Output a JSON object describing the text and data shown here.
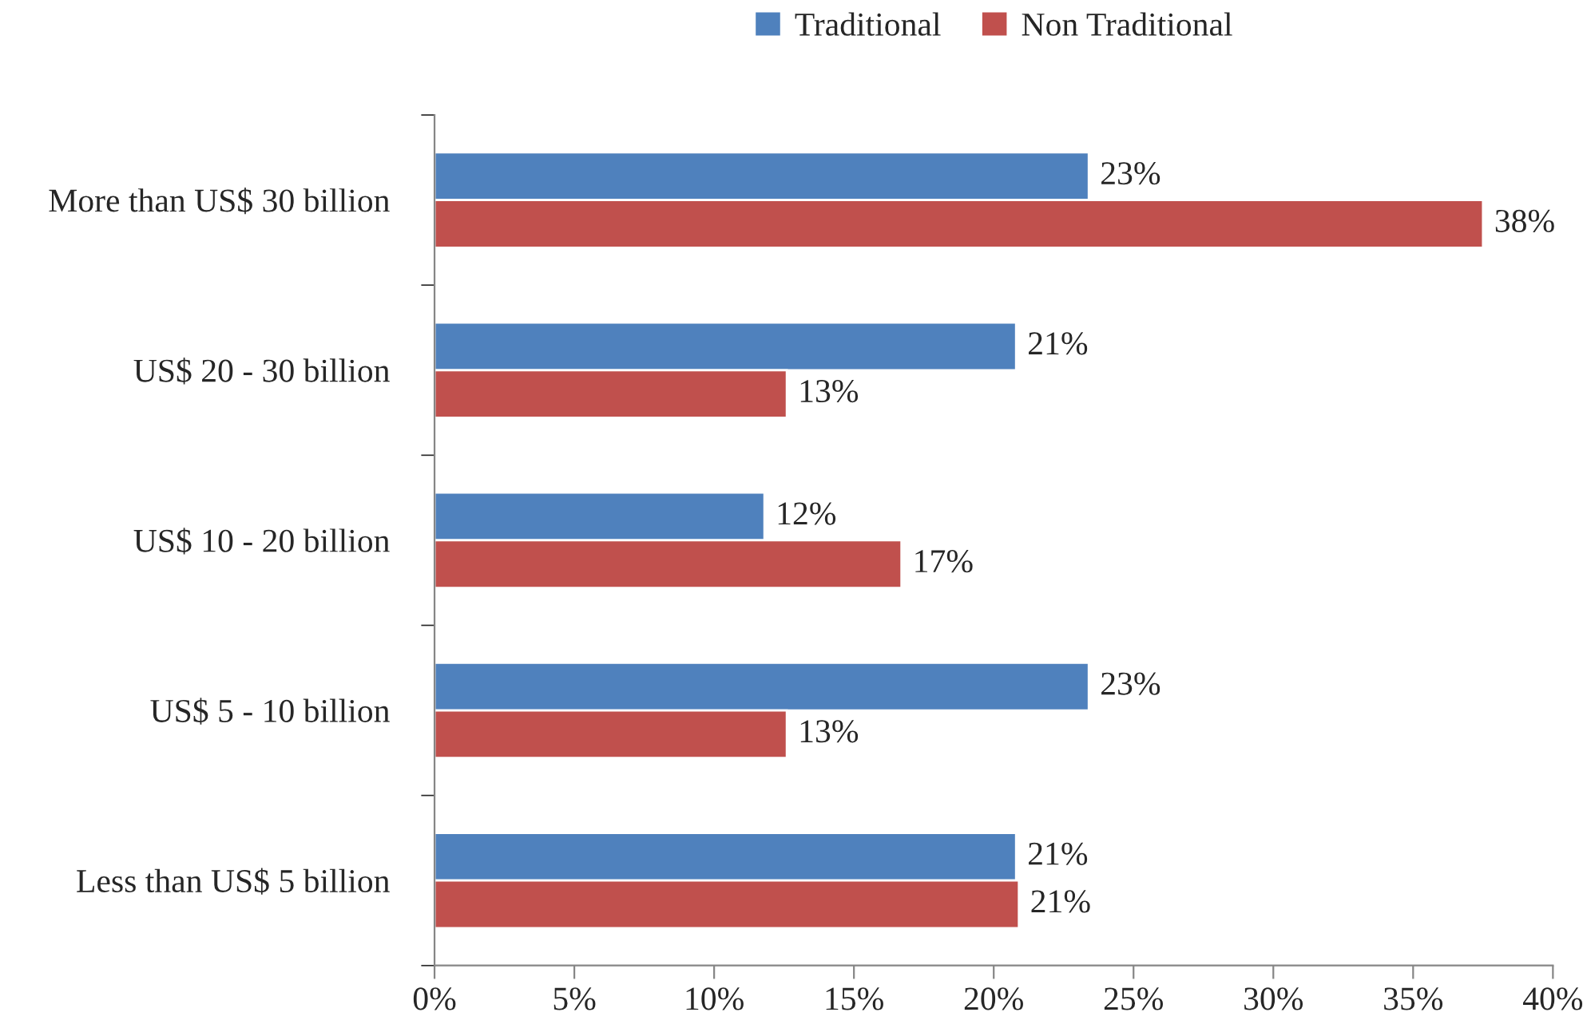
{
  "chart_data": {
    "type": "bar",
    "orientation": "horizontal",
    "categories": [
      "More than US$ 30 billion",
      "US$ 20 - 30 billion",
      "US$ 10 - 20 billion",
      "US$ 5 - 10 billion",
      "Less than US$ 5 billion"
    ],
    "series": [
      {
        "name": "Traditional",
        "color": "#4f81bd",
        "values": [
          23.4,
          20.8,
          11.8,
          23.4,
          20.8
        ],
        "value_labels": [
          "23%",
          "21%",
          "12%",
          "23%",
          "21%"
        ]
      },
      {
        "name": "Non Traditional",
        "color": "#c0504d",
        "values": [
          37.5,
          12.6,
          16.7,
          12.6,
          20.9
        ],
        "value_labels": [
          "38%",
          "13%",
          "17%",
          "13%",
          "21%"
        ]
      }
    ],
    "xlim": [
      0,
      40
    ],
    "xticks": [
      {
        "value": 0,
        "label": "0%"
      },
      {
        "value": 5,
        "label": "5%"
      },
      {
        "value": 10,
        "label": "10%"
      },
      {
        "value": 15,
        "label": "15%"
      },
      {
        "value": 20,
        "label": "20%"
      },
      {
        "value": 25,
        "label": "25%"
      },
      {
        "value": 30,
        "label": "30%"
      },
      {
        "value": 35,
        "label": "35%"
      },
      {
        "value": 40,
        "label": "40%"
      }
    ],
    "legend": "top"
  }
}
